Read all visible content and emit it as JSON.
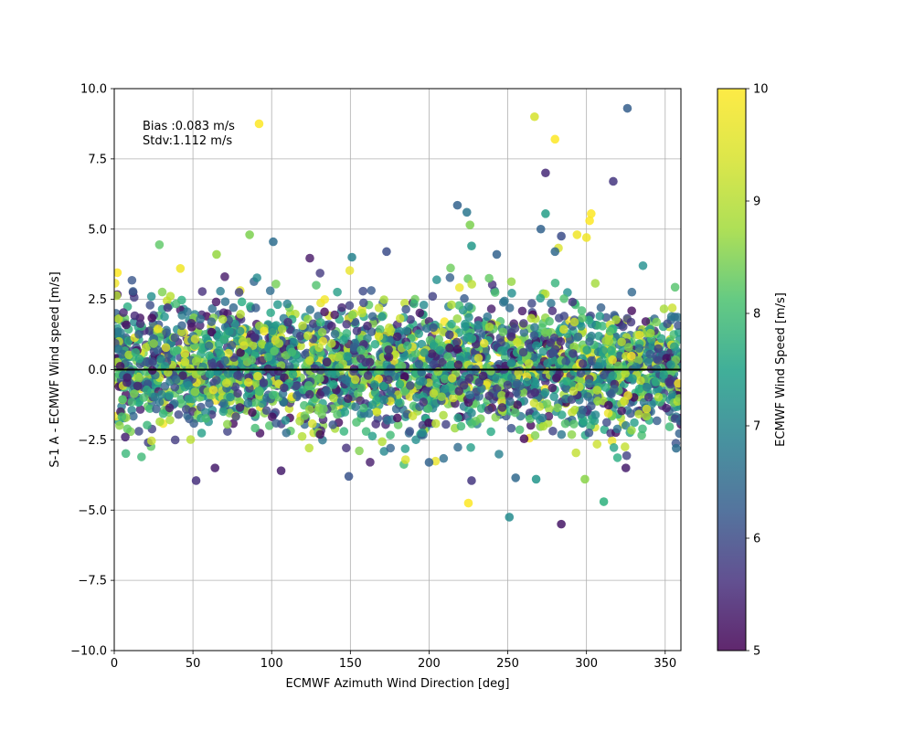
{
  "chart_data": {
    "type": "scatter",
    "xlabel": "ECMWF Azimuth Wind Direction [deg]",
    "ylabel": "S-1 A - ECMWF Wind speed [m/s]",
    "xlim": [
      0,
      360
    ],
    "ylim": [
      -10,
      10
    ],
    "xticks": [
      "0",
      "50",
      "100",
      "150",
      "200",
      "250",
      "300",
      "350"
    ],
    "yticks": [
      "−10.0",
      "−7.5",
      "−5.0",
      "−2.5",
      "0.0",
      "2.5",
      "5.0",
      "7.5",
      "10.0"
    ],
    "grid": true,
    "reference_line_y": 0,
    "annotation": {
      "bias": "Bias :0.083 m/s",
      "stdv": "Stdv:1.112 m/s"
    },
    "colorbar": {
      "label": "ECMWF Wind Speed [m/s]",
      "range": [
        5,
        10
      ],
      "ticks": [
        "5",
        "6",
        "7",
        "8",
        "9",
        "10"
      ],
      "colormap": "viridis"
    },
    "point_cloud": {
      "count": 3000,
      "bias": 0.083,
      "stdv": 1.112,
      "x_range": [
        0,
        360
      ],
      "c_range": [
        5,
        10
      ]
    },
    "notable_points": [
      {
        "x": 92,
        "y": 8.75,
        "c": 10.0
      },
      {
        "x": 267,
        "y": 9.0,
        "c": 9.7
      },
      {
        "x": 280,
        "y": 8.2,
        "c": 10.0
      },
      {
        "x": 326,
        "y": 9.3,
        "c": 6.5
      },
      {
        "x": 274,
        "y": 7.0,
        "c": 5.6
      },
      {
        "x": 317,
        "y": 6.7,
        "c": 5.8
      },
      {
        "x": 218,
        "y": 5.85,
        "c": 6.6
      },
      {
        "x": 224,
        "y": 5.6,
        "c": 7.0
      },
      {
        "x": 226,
        "y": 5.15,
        "c": 9.0
      },
      {
        "x": 274,
        "y": 5.55,
        "c": 7.8
      },
      {
        "x": 303,
        "y": 5.55,
        "c": 10.0
      },
      {
        "x": 302,
        "y": 5.3,
        "c": 10.0
      },
      {
        "x": 271,
        "y": 5.0,
        "c": 6.6
      },
      {
        "x": 101,
        "y": 4.55,
        "c": 6.8
      },
      {
        "x": 86,
        "y": 4.8,
        "c": 9.0
      },
      {
        "x": 65,
        "y": 4.1,
        "c": 9.2
      },
      {
        "x": 151,
        "y": 4.0,
        "c": 7.2
      },
      {
        "x": 173,
        "y": 4.2,
        "c": 6.2
      },
      {
        "x": 227,
        "y": 4.4,
        "c": 7.7
      },
      {
        "x": 243,
        "y": 4.1,
        "c": 6.6
      },
      {
        "x": 280,
        "y": 4.2,
        "c": 6.7
      },
      {
        "x": 284,
        "y": 4.75,
        "c": 6.2
      },
      {
        "x": 294,
        "y": 4.8,
        "c": 9.9
      },
      {
        "x": 300,
        "y": 4.7,
        "c": 9.9
      },
      {
        "x": 42,
        "y": 3.6,
        "c": 9.9
      },
      {
        "x": 2,
        "y": 3.45,
        "c": 10.0
      },
      {
        "x": 225,
        "y": -4.75,
        "c": 10.0
      },
      {
        "x": 251,
        "y": -5.25,
        "c": 7.4
      },
      {
        "x": 284,
        "y": -5.5,
        "c": 5.3
      },
      {
        "x": 311,
        "y": -4.7,
        "c": 8.2
      },
      {
        "x": 149,
        "y": -3.8,
        "c": 6.3
      },
      {
        "x": 52,
        "y": -3.95,
        "c": 5.7
      },
      {
        "x": 64,
        "y": -3.5,
        "c": 5.4
      },
      {
        "x": 106,
        "y": -3.6,
        "c": 5.4
      },
      {
        "x": 227,
        "y": -3.95,
        "c": 5.8
      },
      {
        "x": 255,
        "y": -3.85,
        "c": 6.7
      },
      {
        "x": 268,
        "y": -3.9,
        "c": 7.6
      },
      {
        "x": 299,
        "y": -3.9,
        "c": 9.1
      },
      {
        "x": 325,
        "y": -3.5,
        "c": 5.4
      },
      {
        "x": 200,
        "y": -3.3,
        "c": 6.6
      },
      {
        "x": 357,
        "y": -2.8,
        "c": 6.8
      },
      {
        "x": 7,
        "y": -2.4,
        "c": 5.5
      }
    ]
  }
}
